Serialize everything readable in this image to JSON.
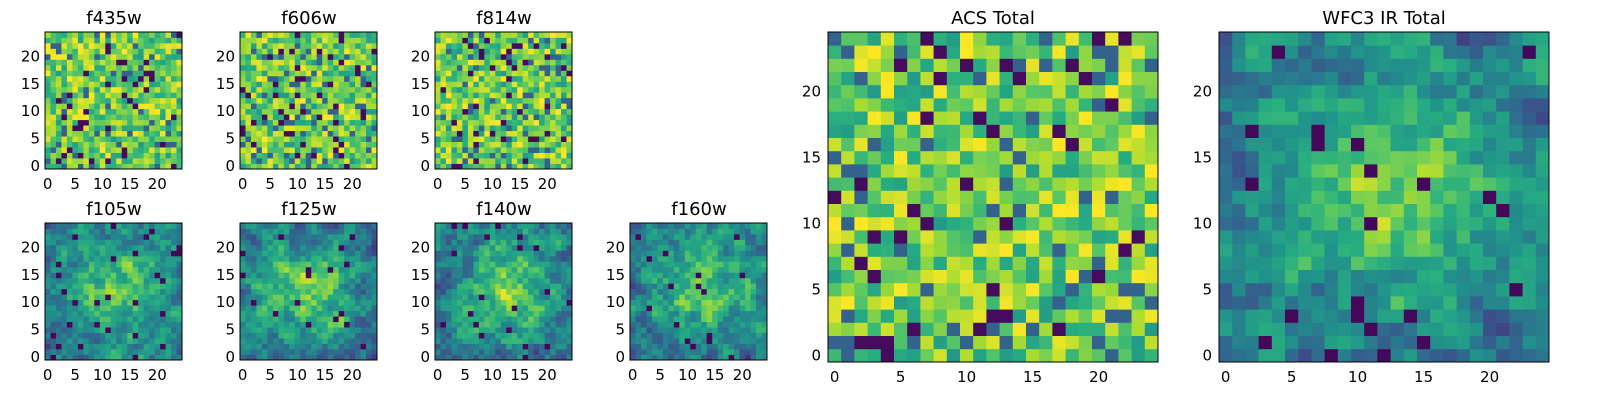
{
  "chart_data": [
    {
      "type": "heatmap",
      "title": "f435w",
      "xticks": [
        "0",
        "5",
        "10",
        "15",
        "20"
      ],
      "yticks": [
        "0",
        "5",
        "10",
        "15",
        "20"
      ],
      "xlim": [
        0,
        25
      ],
      "ylim": [
        0,
        25
      ],
      "grid_size": [
        25,
        25
      ],
      "colormap": "viridis",
      "pattern": "noise",
      "seed": 11
    },
    {
      "type": "heatmap",
      "title": "f606w",
      "xticks": [
        "0",
        "5",
        "10",
        "15",
        "20"
      ],
      "yticks": [
        "0",
        "5",
        "10",
        "15",
        "20"
      ],
      "xlim": [
        0,
        25
      ],
      "ylim": [
        0,
        25
      ],
      "grid_size": [
        25,
        25
      ],
      "colormap": "viridis",
      "pattern": "noise",
      "seed": 23
    },
    {
      "type": "heatmap",
      "title": "f814w",
      "xticks": [
        "0",
        "5",
        "10",
        "15",
        "20"
      ],
      "yticks": [
        "0",
        "5",
        "10",
        "15",
        "20"
      ],
      "xlim": [
        0,
        25
      ],
      "ylim": [
        0,
        25
      ],
      "grid_size": [
        25,
        25
      ],
      "colormap": "viridis",
      "pattern": "noise",
      "seed": 37
    },
    {
      "type": "heatmap",
      "title": "f105w",
      "xticks": [
        "0",
        "5",
        "10",
        "15",
        "20"
      ],
      "yticks": [
        "0",
        "5",
        "10",
        "15",
        "20"
      ],
      "xlim": [
        0,
        25
      ],
      "ylim": [
        0,
        25
      ],
      "grid_size": [
        25,
        25
      ],
      "colormap": "viridis",
      "pattern": "central-blob",
      "seed": 41
    },
    {
      "type": "heatmap",
      "title": "f125w",
      "xticks": [
        "0",
        "5",
        "10",
        "15",
        "20"
      ],
      "yticks": [
        "0",
        "5",
        "10",
        "15",
        "20"
      ],
      "xlim": [
        0,
        25
      ],
      "ylim": [
        0,
        25
      ],
      "grid_size": [
        25,
        25
      ],
      "colormap": "viridis",
      "pattern": "central-blob",
      "seed": 53
    },
    {
      "type": "heatmap",
      "title": "f140w",
      "xticks": [
        "0",
        "5",
        "10",
        "15",
        "20"
      ],
      "yticks": [
        "0",
        "5",
        "10",
        "15",
        "20"
      ],
      "xlim": [
        0,
        25
      ],
      "ylim": [
        0,
        25
      ],
      "grid_size": [
        25,
        25
      ],
      "colormap": "viridis",
      "pattern": "central-blob",
      "seed": 67
    },
    {
      "type": "heatmap",
      "title": "f160w",
      "xticks": [
        "0",
        "5",
        "10",
        "15",
        "20"
      ],
      "yticks": [
        "0",
        "5",
        "10",
        "15",
        "20"
      ],
      "xlim": [
        0,
        25
      ],
      "ylim": [
        0,
        25
      ],
      "grid_size": [
        25,
        25
      ],
      "colormap": "viridis",
      "pattern": "central-blob",
      "seed": 79
    },
    {
      "type": "heatmap",
      "title": "ACS Total",
      "xticks": [
        "0",
        "5",
        "10",
        "15",
        "20"
      ],
      "yticks": [
        "0",
        "5",
        "10",
        "15",
        "20"
      ],
      "xlim": [
        0,
        25
      ],
      "ylim": [
        0,
        25
      ],
      "grid_size": [
        25,
        25
      ],
      "colormap": "viridis",
      "pattern": "noise",
      "seed": 97
    },
    {
      "type": "heatmap",
      "title": "WFC3 IR Total",
      "xticks": [
        "0",
        "5",
        "10",
        "15",
        "20"
      ],
      "yticks": [
        "0",
        "5",
        "10",
        "15",
        "20"
      ],
      "xlim": [
        0,
        25
      ],
      "ylim": [
        0,
        25
      ],
      "grid_size": [
        25,
        25
      ],
      "colormap": "viridis",
      "pattern": "central-blob",
      "seed": 113
    }
  ]
}
